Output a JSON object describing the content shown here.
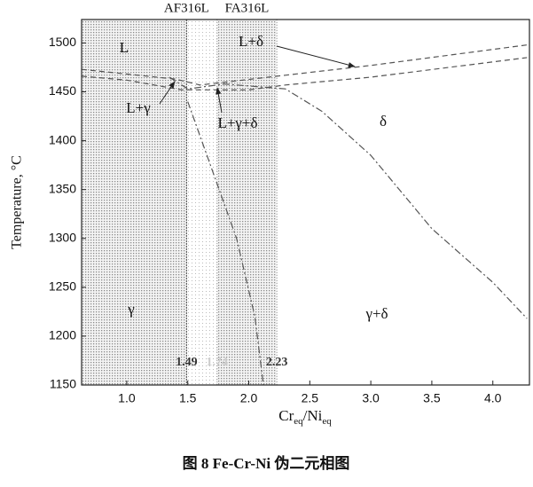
{
  "chart_data": {
    "type": "line",
    "xlabel_parts": [
      "Cr",
      "eq",
      "/Ni",
      "eq"
    ],
    "ylabel": "Temperature, °C",
    "caption": "图 8   Fe-Cr-Ni 伪二元相图",
    "xlim": [
      0.63,
      4.3
    ],
    "ylim": [
      1150,
      1524
    ],
    "xticks": [
      {
        "value": 1,
        "label": "1.0"
      },
      {
        "value": 1.5,
        "label": "1.5"
      },
      {
        "value": 2,
        "label": "2.0"
      },
      {
        "value": 2.5,
        "label": "2.5"
      },
      {
        "value": 3,
        "label": "3.0"
      },
      {
        "value": 3.5,
        "label": "3.5"
      },
      {
        "value": 4,
        "label": "4.0"
      }
    ],
    "yticks": [
      1150,
      1200,
      1250,
      1300,
      1350,
      1400,
      1450,
      1500
    ],
    "boundaries": [
      {
        "value": 1.49,
        "label": "1.49"
      },
      {
        "value": 1.74,
        "label": "1.74"
      },
      {
        "value": 2.23,
        "label": "2.23"
      }
    ],
    "zone_labels": [
      "AF316L",
      "FA316L"
    ],
    "phase_labels": [
      "L",
      "L+δ",
      "L+γ",
      "L+γ+δ",
      "δ",
      "γ",
      "γ+δ"
    ],
    "series": [
      {
        "color": "#555",
        "dash": "6,4",
        "x": [
          0.63,
          1.4,
          1.6,
          2.3,
          3.0,
          4.28
        ],
        "values": [
          1473,
          1463,
          1457,
          1467,
          1477,
          1498
        ]
      },
      {
        "color": "#555",
        "dash": "6,4",
        "x": [
          0.63,
          1.0,
          1.45,
          2.0,
          2.3,
          3.0,
          4.28
        ],
        "values": [
          1466,
          1462,
          1452,
          1452,
          1457,
          1465,
          1485
        ]
      },
      {
        "color": "#555",
        "dash": "8,3,2,3",
        "x": [
          1.35,
          1.5,
          1.8,
          2.3,
          2.6,
          3.0,
          3.5,
          4.0,
          4.28
        ],
        "values": [
          1465,
          1453,
          1458,
          1453,
          1430,
          1385,
          1310,
          1255,
          1218
        ]
      },
      {
        "color": "#555",
        "dash": "8,3,2,3",
        "x": [
          1.5,
          1.7,
          1.9,
          2.05,
          2.12
        ],
        "values": [
          1440,
          1370,
          1300,
          1220,
          1150
        ]
      }
    ]
  }
}
